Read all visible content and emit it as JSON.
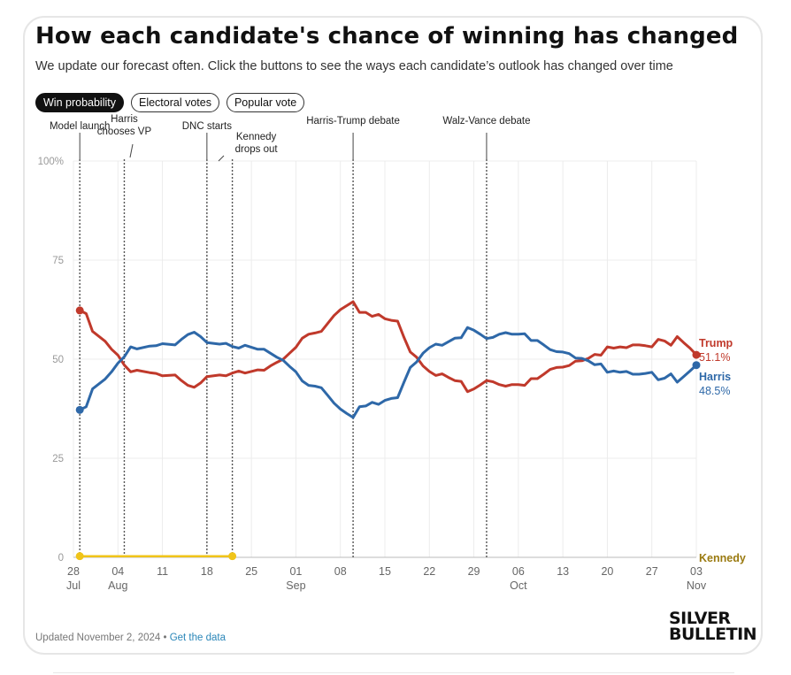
{
  "title": "How each candidate's chance of winning has changed",
  "subtitle": "We update our forecast often. Click the buttons to see the ways each candidate’s outlook has changed over time",
  "buttons": [
    {
      "label": "Win probability",
      "active": true
    },
    {
      "label": "Electoral votes",
      "active": false
    },
    {
      "label": "Popular vote",
      "active": false
    }
  ],
  "footer": {
    "updated": "Updated November 2, 2024 • ",
    "link": "Get the data"
  },
  "logo": {
    "line1": "SILVER",
    "line2": "BULLETIN"
  },
  "colors": {
    "trump": "#c0392b",
    "harris": "#2e68a8",
    "kennedy": "#f0c419",
    "kennedy_label": "#9a7a10",
    "grid": "#ececec",
    "axis": "#999999"
  },
  "chart_data": {
    "type": "line",
    "x_axis": {
      "ticks": [
        {
          "date": "2024-07-28",
          "day": "28",
          "month": "Jul"
        },
        {
          "date": "2024-08-04",
          "day": "04",
          "month": "Aug"
        },
        {
          "date": "2024-08-11",
          "day": "11",
          "month": ""
        },
        {
          "date": "2024-08-18",
          "day": "18",
          "month": ""
        },
        {
          "date": "2024-08-25",
          "day": "25",
          "month": ""
        },
        {
          "date": "2024-09-01",
          "day": "01",
          "month": "Sep"
        },
        {
          "date": "2024-09-08",
          "day": "08",
          "month": ""
        },
        {
          "date": "2024-09-15",
          "day": "15",
          "month": ""
        },
        {
          "date": "2024-09-22",
          "day": "22",
          "month": ""
        },
        {
          "date": "2024-09-29",
          "day": "29",
          "month": ""
        },
        {
          "date": "2024-10-06",
          "day": "06",
          "month": "Oct"
        },
        {
          "date": "2024-10-13",
          "day": "13",
          "month": ""
        },
        {
          "date": "2024-10-20",
          "day": "20",
          "month": ""
        },
        {
          "date": "2024-10-27",
          "day": "27",
          "month": ""
        },
        {
          "date": "2024-11-03",
          "day": "03",
          "month": "Nov"
        }
      ],
      "range": [
        "2024-07-28",
        "2024-11-03"
      ]
    },
    "y_axis": {
      "ticks": [
        "0",
        "25",
        "50",
        "75",
        "100%"
      ],
      "tick_values": [
        0,
        25,
        50,
        75,
        100
      ],
      "range": [
        0,
        100
      ]
    },
    "grid": true,
    "events": [
      {
        "date": "2024-07-29",
        "label": [
          "Model launch"
        ]
      },
      {
        "date": "2024-08-05",
        "label": [
          "Harris",
          "chooses VP"
        ]
      },
      {
        "date": "2024-08-18",
        "label": [
          "DNC starts"
        ]
      },
      {
        "date": "2024-08-22",
        "label": [
          "Kennedy",
          "drops out"
        ]
      },
      {
        "date": "2024-09-10",
        "label": [
          "Harris-Trump debate"
        ]
      },
      {
        "date": "2024-10-01",
        "label": [
          "Walz-Vance debate"
        ]
      }
    ],
    "series": [
      {
        "name": "Trump",
        "end_label": "51.1%",
        "points": [
          [
            "2024-07-29",
            62.3
          ],
          [
            "2024-07-30",
            61.5
          ],
          [
            "2024-07-31",
            57.0
          ],
          [
            "2024-08-02",
            54.5
          ],
          [
            "2024-08-03",
            52.5
          ],
          [
            "2024-08-04",
            51.0
          ],
          [
            "2024-08-05",
            48.5
          ],
          [
            "2024-08-06",
            46.8
          ],
          [
            "2024-08-07",
            47.2
          ],
          [
            "2024-08-09",
            46.6
          ],
          [
            "2024-08-10",
            46.4
          ],
          [
            "2024-08-11",
            45.8
          ],
          [
            "2024-08-13",
            46.0
          ],
          [
            "2024-08-14",
            44.6
          ],
          [
            "2024-08-15",
            43.4
          ],
          [
            "2024-08-16",
            42.9
          ],
          [
            "2024-08-17",
            44.0
          ],
          [
            "2024-08-18",
            45.6
          ],
          [
            "2024-08-20",
            46.0
          ],
          [
            "2024-08-21",
            45.8
          ],
          [
            "2024-08-22",
            46.5
          ],
          [
            "2024-08-23",
            47.0
          ],
          [
            "2024-08-24",
            46.5
          ],
          [
            "2024-08-26",
            47.3
          ],
          [
            "2024-08-27",
            47.2
          ],
          [
            "2024-08-28",
            48.3
          ],
          [
            "2024-08-29",
            49.2
          ],
          [
            "2024-08-30",
            50.0
          ],
          [
            "2024-08-31",
            51.5
          ],
          [
            "2024-09-01",
            53.0
          ],
          [
            "2024-09-02",
            55.3
          ],
          [
            "2024-09-03",
            56.3
          ],
          [
            "2024-09-04",
            56.6
          ],
          [
            "2024-09-05",
            57.0
          ],
          [
            "2024-09-06",
            59.0
          ],
          [
            "2024-09-07",
            61.0
          ],
          [
            "2024-09-08",
            62.5
          ],
          [
            "2024-09-09",
            63.5
          ],
          [
            "2024-09-10",
            64.5
          ],
          [
            "2024-09-11",
            61.8
          ],
          [
            "2024-09-12",
            61.8
          ],
          [
            "2024-09-13",
            60.8
          ],
          [
            "2024-09-14",
            61.3
          ],
          [
            "2024-09-15",
            60.2
          ],
          [
            "2024-09-16",
            59.8
          ],
          [
            "2024-09-17",
            59.6
          ],
          [
            "2024-09-18",
            55.5
          ],
          [
            "2024-09-19",
            51.8
          ],
          [
            "2024-09-20",
            50.5
          ],
          [
            "2024-09-21",
            48.3
          ],
          [
            "2024-09-22",
            46.9
          ],
          [
            "2024-09-23",
            45.9
          ],
          [
            "2024-09-24",
            46.3
          ],
          [
            "2024-09-25",
            45.4
          ],
          [
            "2024-09-26",
            44.6
          ],
          [
            "2024-09-27",
            44.4
          ],
          [
            "2024-09-28",
            41.8
          ],
          [
            "2024-09-29",
            42.5
          ],
          [
            "2024-09-30",
            43.5
          ],
          [
            "2024-10-01",
            44.6
          ],
          [
            "2024-10-02",
            44.3
          ],
          [
            "2024-10-03",
            43.6
          ],
          [
            "2024-10-04",
            43.2
          ],
          [
            "2024-10-05",
            43.6
          ],
          [
            "2024-10-06",
            43.6
          ],
          [
            "2024-10-07",
            43.4
          ],
          [
            "2024-10-08",
            45.1
          ],
          [
            "2024-10-09",
            45.1
          ],
          [
            "2024-10-10",
            46.2
          ],
          [
            "2024-10-11",
            47.4
          ],
          [
            "2024-10-12",
            47.9
          ],
          [
            "2024-10-13",
            48.0
          ],
          [
            "2024-10-14",
            48.4
          ],
          [
            "2024-10-15",
            49.5
          ],
          [
            "2024-10-16",
            49.6
          ],
          [
            "2024-10-17",
            50.2
          ],
          [
            "2024-10-18",
            51.2
          ],
          [
            "2024-10-19",
            51.0
          ],
          [
            "2024-10-20",
            53.1
          ],
          [
            "2024-10-21",
            52.8
          ],
          [
            "2024-10-22",
            53.1
          ],
          [
            "2024-10-23",
            52.9
          ],
          [
            "2024-10-24",
            53.6
          ],
          [
            "2024-10-25",
            53.6
          ],
          [
            "2024-10-26",
            53.4
          ],
          [
            "2024-10-27",
            53.1
          ],
          [
            "2024-10-28",
            55.0
          ],
          [
            "2024-10-29",
            54.6
          ],
          [
            "2024-10-30",
            53.5
          ],
          [
            "2024-10-31",
            55.7
          ],
          [
            "2024-11-01",
            54.2
          ],
          [
            "2024-11-02",
            52.8
          ],
          [
            "2024-11-03",
            51.1
          ]
        ]
      },
      {
        "name": "Harris",
        "end_label": "48.5%",
        "points": [
          [
            "2024-07-29",
            37.2
          ],
          [
            "2024-07-30",
            38.0
          ],
          [
            "2024-07-31",
            42.5
          ],
          [
            "2024-08-02",
            45.0
          ],
          [
            "2024-08-03",
            46.8
          ],
          [
            "2024-08-04",
            49.0
          ],
          [
            "2024-08-05",
            50.6
          ],
          [
            "2024-08-06",
            53.1
          ],
          [
            "2024-08-07",
            52.6
          ],
          [
            "2024-08-09",
            53.3
          ],
          [
            "2024-08-10",
            53.4
          ],
          [
            "2024-08-11",
            53.9
          ],
          [
            "2024-08-13",
            53.6
          ],
          [
            "2024-08-14",
            55.0
          ],
          [
            "2024-08-15",
            56.2
          ],
          [
            "2024-08-16",
            56.8
          ],
          [
            "2024-08-17",
            55.7
          ],
          [
            "2024-08-18",
            54.2
          ],
          [
            "2024-08-20",
            53.8
          ],
          [
            "2024-08-21",
            54.0
          ],
          [
            "2024-08-22",
            53.2
          ],
          [
            "2024-08-23",
            52.8
          ],
          [
            "2024-08-24",
            53.5
          ],
          [
            "2024-08-26",
            52.5
          ],
          [
            "2024-08-27",
            52.5
          ],
          [
            "2024-08-28",
            51.5
          ],
          [
            "2024-08-29",
            50.5
          ],
          [
            "2024-08-30",
            49.7
          ],
          [
            "2024-08-31",
            48.2
          ],
          [
            "2024-09-01",
            46.8
          ],
          [
            "2024-09-02",
            44.5
          ],
          [
            "2024-09-03",
            43.4
          ],
          [
            "2024-09-04",
            43.2
          ],
          [
            "2024-09-05",
            42.8
          ],
          [
            "2024-09-06",
            40.9
          ],
          [
            "2024-09-07",
            38.9
          ],
          [
            "2024-09-08",
            37.4
          ],
          [
            "2024-09-09",
            36.3
          ],
          [
            "2024-09-10",
            35.3
          ],
          [
            "2024-09-11",
            38.0
          ],
          [
            "2024-09-12",
            38.2
          ],
          [
            "2024-09-13",
            39.1
          ],
          [
            "2024-09-14",
            38.6
          ],
          [
            "2024-09-15",
            39.6
          ],
          [
            "2024-09-16",
            40.1
          ],
          [
            "2024-09-17",
            40.3
          ],
          [
            "2024-09-18",
            44.2
          ],
          [
            "2024-09-19",
            47.9
          ],
          [
            "2024-09-20",
            49.3
          ],
          [
            "2024-09-21",
            51.5
          ],
          [
            "2024-09-22",
            52.9
          ],
          [
            "2024-09-23",
            53.8
          ],
          [
            "2024-09-24",
            53.5
          ],
          [
            "2024-09-25",
            54.4
          ],
          [
            "2024-09-26",
            55.3
          ],
          [
            "2024-09-27",
            55.4
          ],
          [
            "2024-09-28",
            58.0
          ],
          [
            "2024-09-29",
            57.3
          ],
          [
            "2024-09-30",
            56.3
          ],
          [
            "2024-10-01",
            55.2
          ],
          [
            "2024-10-02",
            55.5
          ],
          [
            "2024-10-03",
            56.3
          ],
          [
            "2024-10-04",
            56.7
          ],
          [
            "2024-10-05",
            56.3
          ],
          [
            "2024-10-06",
            56.3
          ],
          [
            "2024-10-07",
            56.4
          ],
          [
            "2024-10-08",
            54.7
          ],
          [
            "2024-10-09",
            54.7
          ],
          [
            "2024-10-10",
            53.6
          ],
          [
            "2024-10-11",
            52.4
          ],
          [
            "2024-10-12",
            51.9
          ],
          [
            "2024-10-13",
            51.8
          ],
          [
            "2024-10-14",
            51.4
          ],
          [
            "2024-10-15",
            50.3
          ],
          [
            "2024-10-16",
            50.2
          ],
          [
            "2024-10-17",
            49.6
          ],
          [
            "2024-10-18",
            48.6
          ],
          [
            "2024-10-19",
            48.8
          ],
          [
            "2024-10-20",
            46.7
          ],
          [
            "2024-10-21",
            47.0
          ],
          [
            "2024-10-22",
            46.7
          ],
          [
            "2024-10-23",
            46.9
          ],
          [
            "2024-10-24",
            46.2
          ],
          [
            "2024-10-25",
            46.2
          ],
          [
            "2024-10-26",
            46.4
          ],
          [
            "2024-10-27",
            46.7
          ],
          [
            "2024-10-28",
            44.8
          ],
          [
            "2024-10-29",
            45.2
          ],
          [
            "2024-10-30",
            46.3
          ],
          [
            "2024-10-31",
            44.2
          ],
          [
            "2024-11-01",
            45.6
          ],
          [
            "2024-11-02",
            47.0
          ],
          [
            "2024-11-03",
            48.5
          ]
        ]
      },
      {
        "name": "Kennedy",
        "end_label": "",
        "points": [
          [
            "2024-07-29",
            0.3
          ],
          [
            "2024-08-22",
            0.3
          ]
        ]
      }
    ]
  }
}
